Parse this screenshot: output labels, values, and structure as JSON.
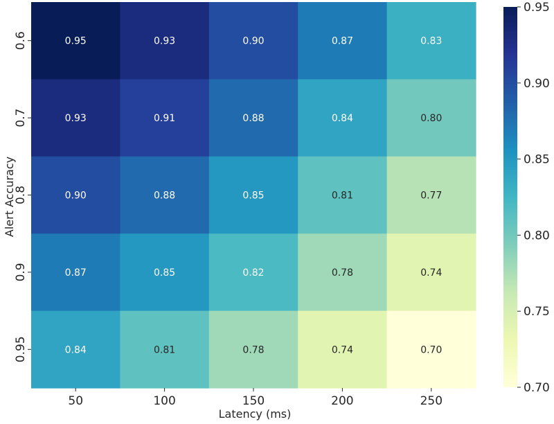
{
  "chart_data": {
    "type": "heatmap",
    "title": "",
    "xlabel": "Latency (ms)",
    "ylabel": "Alert Accuracy",
    "x_categories": [
      "50",
      "100",
      "150",
      "200",
      "250"
    ],
    "y_categories": [
      "0.6",
      "0.7",
      "0.8",
      "0.9",
      "0.95"
    ],
    "values": [
      [
        0.95,
        0.93,
        0.9,
        0.87,
        0.83
      ],
      [
        0.93,
        0.91,
        0.88,
        0.84,
        0.8
      ],
      [
        0.9,
        0.88,
        0.85,
        0.81,
        0.77
      ],
      [
        0.87,
        0.85,
        0.82,
        0.78,
        0.74
      ],
      [
        0.84,
        0.81,
        0.78,
        0.74,
        0.7
      ]
    ],
    "value_labels": [
      [
        "0.95",
        "0.93",
        "0.90",
        "0.87",
        "0.83"
      ],
      [
        "0.93",
        "0.91",
        "0.88",
        "0.84",
        "0.80"
      ],
      [
        "0.90",
        "0.88",
        "0.85",
        "0.81",
        "0.77"
      ],
      [
        "0.87",
        "0.85",
        "0.82",
        "0.78",
        "0.74"
      ],
      [
        "0.84",
        "0.81",
        "0.78",
        "0.74",
        "0.70"
      ]
    ],
    "colormap": "YlGnBu",
    "colormap_stops": [
      "#ffffd9",
      "#edf8b1",
      "#c7e9b4",
      "#7fcdbb",
      "#41b6c4",
      "#1d91c0",
      "#225ea8",
      "#253494",
      "#081d58"
    ],
    "colorbar": {
      "range": [
        0.7,
        0.95
      ],
      "ticks": [
        "0.70",
        "0.75",
        "0.80",
        "0.85",
        "0.90",
        "0.95"
      ]
    }
  }
}
